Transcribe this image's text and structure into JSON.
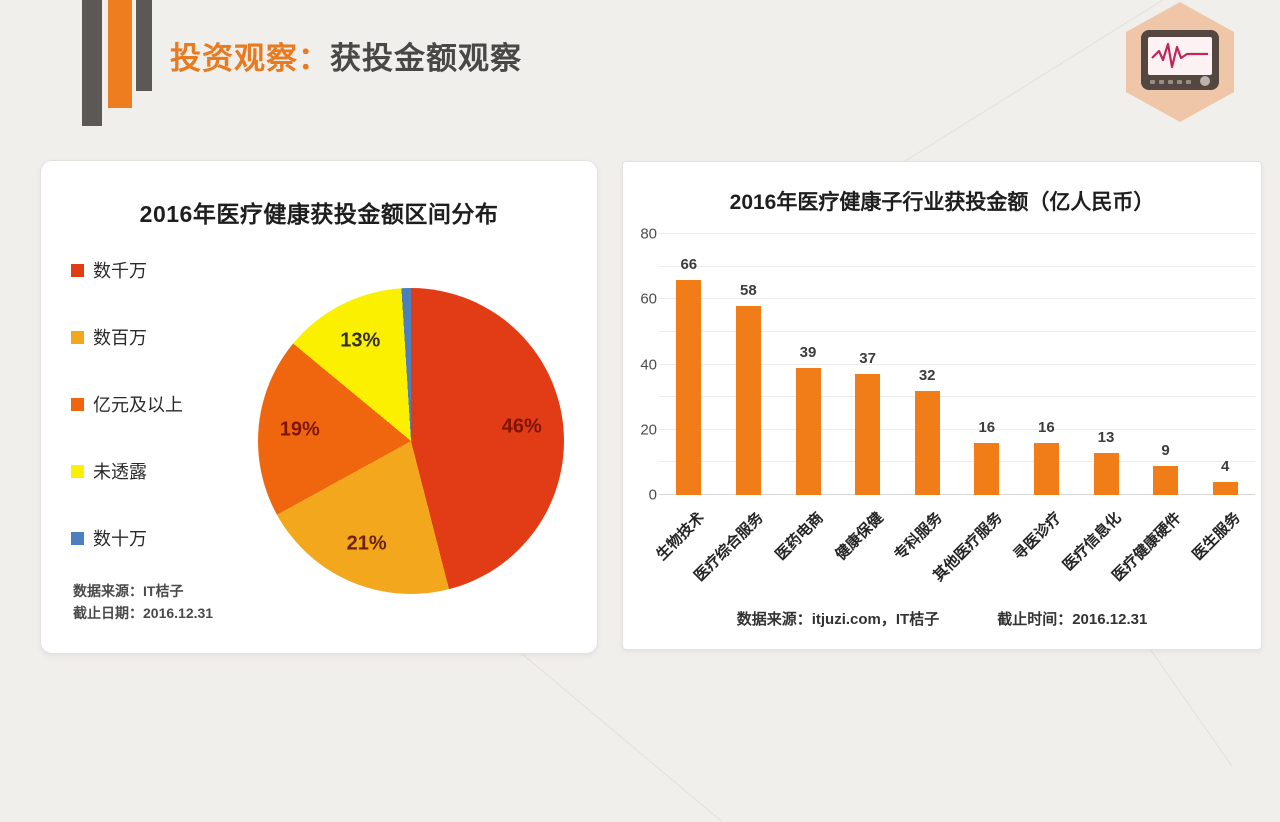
{
  "header": {
    "title_highlight": "投资观察：",
    "title_rest": "获投金额观察",
    "accent_color": "#EE7D1F",
    "logo_icon": "ecg-monitor-icon"
  },
  "pie_card": {
    "title": "2016年医疗健康获投金额区间分布",
    "source_line1": "数据来源：IT桔子",
    "source_line2": "截止日期：2016.12.31"
  },
  "bar_card": {
    "title": "2016年医疗健康子行业获投金额（亿人民币）",
    "source": "数据来源：itjuzi.com，IT桔子",
    "deadline": "截止时间：2016.12.31"
  },
  "chart_data": [
    {
      "type": "pie",
      "title": "2016年医疗健康获投金额区间分布",
      "legend_position": "left",
      "unit": "%",
      "slices": [
        {
          "label": "数千万",
          "value": 46,
          "color": "#E23C17",
          "label_color": "#7E1502",
          "show_label": true
        },
        {
          "label": "数百万",
          "value": 21,
          "color": "#F2A71C",
          "label_color": "#6D2300",
          "show_label": true
        },
        {
          "label": "亿元及以上",
          "value": 19,
          "color": "#F0660F",
          "label_color": "#7E1502",
          "show_label": true
        },
        {
          "label": "未透露",
          "value": 13,
          "color": "#FBF000",
          "label_color": "#33301F",
          "show_label": true
        },
        {
          "label": "数十万",
          "value": 1,
          "color": "#4D7EBE",
          "label_color": "#333333",
          "show_label": false
        }
      ]
    },
    {
      "type": "bar",
      "title": "2016年医疗健康子行业获投金额（亿人民币）",
      "categories": [
        "生物技术",
        "医疗综合服务",
        "医药电商",
        "健康保健",
        "专科服务",
        "其他医疗服务",
        "寻医诊疗",
        "医疗信息化",
        "医疗健康硬件",
        "医生服务"
      ],
      "values": [
        66,
        58,
        39,
        37,
        32,
        16,
        16,
        13,
        9,
        4
      ],
      "bar_color": "#F07D17",
      "ylabel": "",
      "ylim": [
        0,
        80
      ],
      "yticks": [
        0,
        20,
        40,
        60,
        80
      ],
      "grid_step": 10,
      "grid": true,
      "legend_position": "none"
    }
  ]
}
